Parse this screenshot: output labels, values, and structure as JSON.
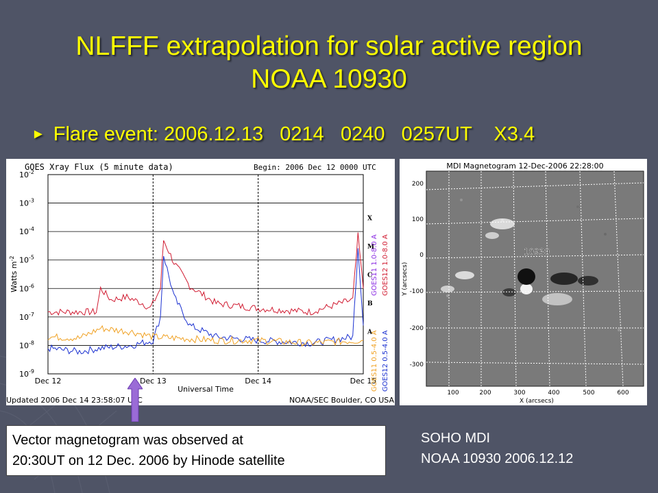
{
  "slide": {
    "title_line1": "NLFFF extrapolation for solar active region",
    "title_line2": "NOAA 10930",
    "bullet": "Flare event: 2006.12.13   0214   0240   0257UT    X3.4",
    "note_line1": "Vector magnetogram was observed at",
    "note_line2": "20:30UT on 12 Dec. 2006 by Hinode satellite",
    "caption_line1": "SOHO MDI",
    "caption_line2": "NOAA 10930   2006.12.12"
  },
  "goes_plot": {
    "title": "GOES Xray Flux (5 minute data)",
    "begin": "Begin:  2006 Dec 12  0000 UTC",
    "ylabel": "Watts m",
    "ylabel_sup": "-2",
    "xlabel": "Universal Time",
    "updated": "Updated 2006 Dec 14 23:58:07 UTC",
    "credit": "NOAA/SEC Boulder, CO USA",
    "xticks": [
      "Dec 12",
      "Dec 13",
      "Dec 14",
      "Dec 15"
    ],
    "yticks": [
      "10",
      "10",
      "10",
      "10",
      "10",
      "10",
      "10",
      "10"
    ],
    "yexps": [
      "-2",
      "-3",
      "-4",
      "-5",
      "-6",
      "-7",
      "-8",
      "-9"
    ],
    "classes": [
      "X",
      "M",
      "C",
      "B",
      "A"
    ],
    "legend": [
      {
        "label": "GOES11 1.0-8.0 A",
        "color": "#8a2be2"
      },
      {
        "label": "GOES12 1.0-8.0 A",
        "color": "#d01a30"
      },
      {
        "label": "GOES11 0.5-4.0 A",
        "color": "#f0a020"
      },
      {
        "label": "GOES12 0.5-4.0 A",
        "color": "#1a30d0"
      }
    ]
  },
  "mdi_plot": {
    "title": "MDI Magnetogram 12-Dec-2006 22:28:00",
    "region_label": "10930",
    "ylabel": "Y (arcsecs)",
    "xlabel": "X (arcsecs)",
    "xticks": [
      "100",
      "200",
      "300",
      "400",
      "500",
      "600"
    ],
    "yticks": [
      "200",
      "100",
      "0",
      "-100",
      "-200",
      "-300"
    ]
  },
  "chart_data": {
    "type": "line",
    "title": "GOES Xray Flux (5 minute data)",
    "xlabel": "Universal Time",
    "ylabel": "Watts m-2",
    "yscale": "log",
    "ylim": [
      1e-09,
      0.01
    ],
    "x": [
      "Dec 12",
      "Dec 13",
      "Dec 14",
      "Dec 15"
    ],
    "series": [
      {
        "name": "GOES12 1.0-8.0 A",
        "color": "#d01a30",
        "points": [
          [
            0,
            1.5e-07
          ],
          [
            0.3,
            1.5e-07
          ],
          [
            0.46,
            1.5e-07
          ],
          [
            0.5,
            1e-06
          ],
          [
            0.6,
            4e-07
          ],
          [
            0.75,
            5e-07
          ],
          [
            0.9,
            3e-07
          ],
          [
            0.97,
            2e-07
          ],
          [
            1.0,
            3e-07
          ],
          [
            1.07,
            1e-06
          ],
          [
            1.1,
            5e-05
          ],
          [
            1.2,
            8e-06
          ],
          [
            1.35,
            1.2e-06
          ],
          [
            1.6,
            3e-07
          ],
          [
            2.0,
            2e-07
          ],
          [
            2.5,
            1.5e-07
          ],
          [
            2.9,
            4e-07
          ],
          [
            2.95,
            7e-05
          ],
          [
            3.0,
            1e-06
          ]
        ]
      },
      {
        "name": "GOES12 0.5-4.0 A",
        "color": "#1a30d0",
        "points": [
          [
            0,
            8e-09
          ],
          [
            0.3,
            6e-09
          ],
          [
            0.5,
            8e-09
          ],
          [
            0.8,
            1e-08
          ],
          [
            1.0,
            1.5e-08
          ],
          [
            1.07,
            1e-07
          ],
          [
            1.1,
            1.5e-05
          ],
          [
            1.2,
            5e-07
          ],
          [
            1.35,
            5e-08
          ],
          [
            1.6,
            2e-08
          ],
          [
            2.0,
            1.5e-08
          ],
          [
            2.5,
            1.2e-08
          ],
          [
            2.9,
            2e-08
          ],
          [
            2.95,
            3e-05
          ],
          [
            3.0,
            5e-08
          ]
        ]
      },
      {
        "name": "GOES11 0.5-4.0 A",
        "color": "#f0a020",
        "points": [
          [
            0,
            2e-08
          ],
          [
            0.3,
            1.8e-08
          ],
          [
            0.5,
            4e-08
          ],
          [
            0.8,
            3e-08
          ],
          [
            1.0,
            2e-08
          ],
          [
            1.6,
            1.5e-08
          ],
          [
            2.0,
            1.5e-08
          ],
          [
            2.5,
            1.2e-08
          ],
          [
            3.0,
            1.5e-08
          ]
        ]
      }
    ]
  }
}
